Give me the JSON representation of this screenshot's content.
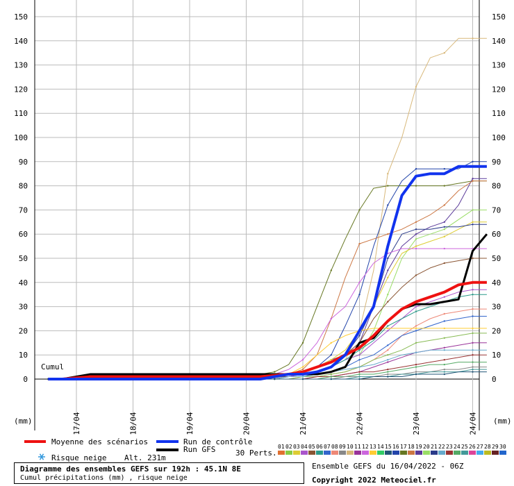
{
  "chart_data": {
    "type": "line",
    "y_ticks": [
      0,
      10,
      20,
      30,
      40,
      50,
      60,
      70,
      80,
      90,
      100,
      110,
      120,
      130,
      140,
      150
    ],
    "ylim": [
      0,
      150
    ],
    "x_ticks": [
      "17/04",
      "18/04",
      "19/04",
      "20/04",
      "21/04",
      "22/04",
      "23/04",
      "24/04"
    ],
    "y_unit_label": "(mm)",
    "cumul_label": "Cumul",
    "x": [
      -0.5,
      -0.25,
      0,
      0.25,
      0.5,
      0.75,
      1,
      1.25,
      1.5,
      1.75,
      2,
      2.25,
      2.5,
      2.75,
      3,
      3.25,
      3.5,
      3.75,
      4,
      4.25,
      4.5,
      4.75,
      5,
      5.25,
      5.5,
      5.75,
      6,
      6.25,
      6.5,
      6.75,
      7,
      7.25
    ],
    "series": [
      {
        "name": "Moyenne des scénarios",
        "color": "#ee1111",
        "width": 4,
        "values": [
          0,
          0,
          0.5,
          1,
          1,
          1,
          1,
          1,
          1,
          1,
          1,
          1,
          1,
          1,
          1,
          1,
          1.5,
          2,
          3,
          5,
          7,
          10,
          13,
          18,
          24,
          29,
          32,
          34,
          36,
          39,
          40,
          40
        ]
      },
      {
        "name": "Run de contrôle",
        "color": "#1133ee",
        "width": 4,
        "values": [
          0,
          0,
          0,
          0,
          0,
          0,
          0,
          0,
          0,
          0,
          0,
          0,
          0,
          0,
          0,
          0,
          1,
          2,
          2,
          3,
          5,
          10,
          20,
          30,
          55,
          76,
          84,
          85,
          85,
          88,
          88,
          88
        ]
      },
      {
        "name": "Run GFS",
        "color": "#000000",
        "width": 3,
        "values": [
          0,
          0,
          1,
          2,
          2,
          2,
          2,
          2,
          2,
          2,
          2,
          2,
          2,
          2,
          2,
          2,
          2,
          2,
          2,
          2,
          3,
          5,
          15,
          17,
          24,
          29,
          31,
          31,
          32,
          33,
          53,
          60
        ]
      },
      {
        "color": "#d8b87a",
        "width": 1,
        "values": [
          0,
          0,
          0,
          0,
          0,
          0,
          0,
          0,
          0,
          0,
          0,
          0,
          0,
          0,
          0,
          0,
          0.5,
          1,
          2,
          3,
          5,
          8,
          20,
          45,
          85,
          100,
          121,
          133,
          135,
          141,
          141,
          141
        ]
      },
      {
        "color": "#2244aa",
        "width": 1,
        "values": [
          0,
          0,
          0,
          0,
          0,
          0,
          0,
          0,
          0,
          0,
          0,
          0,
          0,
          0,
          0,
          0,
          1,
          2,
          3,
          5,
          10,
          22,
          35,
          55,
          72,
          82,
          87,
          87,
          87,
          87,
          90,
          90
        ]
      },
      {
        "color": "#667722",
        "width": 1,
        "values": [
          0,
          0,
          1,
          2,
          2,
          2,
          2,
          2,
          2,
          2,
          2,
          2,
          2,
          2,
          2,
          2,
          3,
          6,
          15,
          30,
          45,
          58,
          70,
          79,
          80,
          80,
          80,
          80,
          80,
          81,
          82,
          82
        ]
      },
      {
        "color": "#5a3a9a",
        "width": 1,
        "values": [
          0,
          0,
          1,
          2,
          2,
          2,
          2,
          2,
          2,
          2,
          2,
          2,
          2,
          2,
          2,
          2,
          2,
          2,
          3,
          5,
          8,
          10,
          15,
          30,
          45,
          55,
          60,
          63,
          65,
          72,
          83,
          83
        ]
      },
      {
        "color": "#cc7744",
        "width": 1,
        "values": [
          0,
          0,
          0,
          1,
          1,
          1,
          1,
          1,
          1,
          1,
          1,
          1,
          1,
          1,
          1,
          1,
          1,
          2,
          4,
          10,
          25,
          42,
          56,
          58,
          60,
          62,
          65,
          68,
          72,
          78,
          82,
          82
        ]
      },
      {
        "color": "#99dd66",
        "width": 1,
        "values": [
          0,
          0,
          0,
          0,
          0,
          0,
          0,
          0,
          0,
          0,
          0,
          0,
          0,
          0,
          0,
          0,
          0,
          1,
          2,
          3,
          5,
          8,
          10,
          20,
          35,
          50,
          58,
          60,
          62,
          66,
          70,
          70
        ]
      },
      {
        "color": "#ddcc33",
        "width": 1,
        "values": [
          0,
          0,
          0,
          0,
          0,
          0,
          0,
          0,
          0,
          0,
          0,
          0,
          0,
          0,
          0,
          0,
          1,
          2,
          3,
          5,
          8,
          12,
          20,
          30,
          42,
          52,
          55,
          57,
          59,
          62,
          65,
          65
        ]
      },
      {
        "color": "#2a3a8a",
        "width": 1,
        "values": [
          0,
          0,
          0,
          0,
          0,
          0,
          0,
          0,
          0,
          0,
          0,
          0,
          0,
          0,
          0,
          0,
          1,
          2,
          2,
          3,
          5,
          10,
          18,
          30,
          50,
          60,
          62,
          62,
          63,
          63,
          64,
          64
        ]
      },
      {
        "color": "#cc66dd",
        "width": 1,
        "values": [
          0,
          0,
          0,
          0,
          0,
          0,
          0,
          0,
          0,
          0,
          0,
          0,
          0,
          0,
          0,
          0,
          2,
          4,
          8,
          15,
          25,
          30,
          40,
          48,
          52,
          54,
          54,
          54,
          54,
          54,
          54,
          54
        ]
      },
      {
        "color": "#8a5533",
        "width": 1,
        "values": [
          0,
          0,
          0,
          0,
          0,
          0,
          0,
          0,
          0,
          0,
          0,
          0,
          0,
          0,
          0,
          0,
          1,
          1,
          2,
          3,
          5,
          10,
          15,
          25,
          32,
          38,
          43,
          46,
          48,
          49,
          50,
          50
        ]
      },
      {
        "color": "#aa55cc",
        "width": 1,
        "values": [
          0,
          0,
          0,
          0,
          0,
          0,
          0,
          0,
          0,
          0,
          0,
          0,
          0,
          0,
          0,
          0,
          0,
          1,
          2,
          3,
          5,
          8,
          10,
          15,
          20,
          25,
          30,
          32,
          34,
          36,
          37,
          37
        ]
      },
      {
        "color": "#2a9a8a",
        "width": 1,
        "values": [
          0,
          0,
          0,
          0,
          0,
          0,
          0,
          0,
          0,
          0,
          0,
          0,
          0,
          0,
          0,
          0,
          1,
          2,
          2,
          3,
          5,
          8,
          12,
          16,
          22,
          25,
          28,
          30,
          32,
          34,
          35,
          35
        ]
      },
      {
        "color": "#ee8877",
        "width": 1,
        "values": [
          0,
          0,
          0,
          0,
          0,
          0,
          0,
          0,
          0,
          0,
          0,
          0,
          0,
          0,
          0,
          0,
          0,
          0,
          1,
          1,
          2,
          3,
          5,
          8,
          12,
          18,
          22,
          25,
          27,
          28,
          29,
          29
        ]
      },
      {
        "color": "#3366cc",
        "width": 1,
        "values": [
          0,
          0,
          0,
          0,
          0,
          0,
          0,
          0,
          0,
          0,
          0,
          0,
          0,
          0,
          0,
          0,
          0,
          1,
          1,
          2,
          3,
          5,
          8,
          10,
          14,
          18,
          20,
          22,
          24,
          25,
          26,
          26
        ]
      },
      {
        "color": "#ffcc33",
        "width": 1,
        "values": [
          0,
          0,
          0,
          0,
          0,
          0,
          0,
          0,
          0,
          0,
          0,
          0,
          0,
          0,
          0,
          0,
          1,
          2,
          5,
          10,
          15,
          18,
          20,
          21,
          21,
          21,
          21,
          21,
          21,
          21,
          21,
          21
        ]
      },
      {
        "color": "#88bb55",
        "width": 1,
        "values": [
          0,
          0,
          0,
          0,
          0,
          0,
          0,
          0,
          0,
          0,
          0,
          0,
          0,
          0,
          0,
          0,
          0,
          0,
          1,
          1,
          2,
          3,
          5,
          8,
          10,
          12,
          15,
          16,
          17,
          18,
          19,
          19
        ]
      },
      {
        "color": "#993399",
        "width": 1,
        "values": [
          0,
          0,
          0,
          0,
          0,
          0,
          0,
          0,
          0,
          0,
          0,
          0,
          0,
          0,
          0,
          0,
          0,
          0,
          0,
          1,
          1,
          2,
          3,
          5,
          7,
          9,
          11,
          12,
          13,
          14,
          15,
          15
        ]
      },
      {
        "color": "#66aacc",
        "width": 1,
        "values": [
          0,
          0,
          0,
          0,
          0,
          0,
          0,
          0,
          0,
          0,
          0,
          0,
          0,
          0,
          0,
          0,
          0,
          1,
          1,
          2,
          3,
          4,
          5,
          6,
          8,
          10,
          11,
          12,
          12,
          12,
          12,
          12
        ]
      },
      {
        "color": "#993333",
        "width": 1,
        "values": [
          0,
          0,
          0,
          0,
          0,
          0,
          0,
          0,
          0,
          0,
          0,
          0,
          0,
          0,
          0,
          0,
          0,
          0,
          0,
          1,
          1,
          2,
          3,
          3,
          4,
          5,
          6,
          7,
          8,
          9,
          10,
          10
        ]
      },
      {
        "color": "#55aa66",
        "width": 1,
        "values": [
          0,
          0,
          0,
          0,
          0,
          0,
          0,
          0,
          0,
          0,
          0,
          0,
          0,
          0,
          0,
          0,
          0,
          0,
          0,
          0,
          1,
          1,
          2,
          2,
          3,
          4,
          5,
          6,
          6,
          7,
          7,
          7
        ]
      },
      {
        "color": "#888888",
        "width": 1,
        "values": [
          0,
          0,
          0,
          0,
          0,
          0,
          0,
          0,
          0,
          0,
          0,
          0,
          0,
          0,
          0,
          0,
          0,
          0,
          0,
          0,
          0,
          1,
          1,
          1,
          2,
          2,
          3,
          3,
          4,
          4,
          5,
          5
        ]
      },
      {
        "color": "#449999",
        "width": 1,
        "values": [
          0,
          0,
          0,
          0,
          0,
          0,
          0,
          0,
          0,
          0,
          0,
          0,
          0,
          0,
          0,
          0,
          0,
          0,
          0,
          0,
          0,
          0,
          1,
          1,
          1,
          2,
          2,
          3,
          3,
          3,
          4,
          4
        ]
      },
      {
        "color": "#225577",
        "width": 1,
        "values": [
          0,
          0,
          0,
          0,
          0,
          0,
          0,
          0,
          0,
          0,
          0,
          0,
          0,
          0,
          0,
          0,
          0,
          0,
          0,
          0,
          0,
          0,
          0,
          1,
          1,
          1,
          2,
          2,
          2,
          3,
          3,
          3
        ]
      }
    ]
  },
  "legend": {
    "mean_label": "Moyenne des scénarios",
    "control_label": "Run de contrôle",
    "gfs_label": "Run GFS",
    "snow_label": "Risque neige",
    "altitude_label": "Alt. 231m",
    "perts_label": "30 Perts.",
    "pert_numbers": [
      "01",
      "02",
      "03",
      "04",
      "05",
      "06",
      "07",
      "08",
      "09",
      "10",
      "11",
      "12",
      "13",
      "14",
      "15",
      "16",
      "17",
      "18",
      "19",
      "20",
      "21",
      "22",
      "23",
      "24",
      "25",
      "26",
      "27",
      "28",
      "29",
      "30"
    ],
    "pert_colors": [
      "#e07030",
      "#88cc44",
      "#ddcc33",
      "#aa55cc",
      "#8a5533",
      "#2a9a8a",
      "#3366cc",
      "#ee8877",
      "#888888",
      "#d8b87a",
      "#993399",
      "#cc66dd",
      "#ffcc33",
      "#33cc66",
      "#225577",
      "#2244aa",
      "#667722",
      "#cc7744",
      "#5a3a9a",
      "#99dd66",
      "#2a3a8a",
      "#66aacc",
      "#993333",
      "#55aa66",
      "#449999",
      "#dd4499",
      "#44aaee",
      "#bbbb22",
      "#662222",
      "#2266cc"
    ]
  },
  "info": {
    "title": "Diagramme des ensembles GEFS sur 192h : 45.1N 8E",
    "subtitle": "Cumul précipitations (mm) , risque neige",
    "run_label": "Ensemble GEFS du 16/04/2022 - 06Z",
    "copyright": "Copyright 2022 Meteociel.fr"
  }
}
